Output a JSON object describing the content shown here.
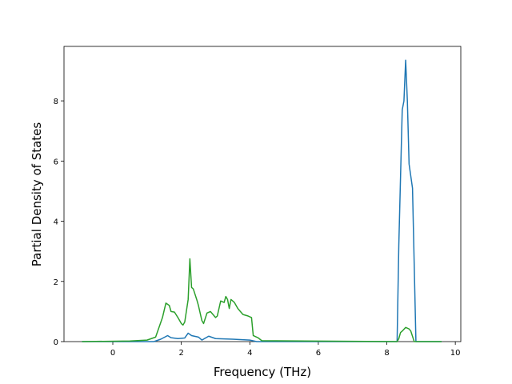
{
  "chart_data": {
    "type": "line",
    "xlabel": "Frequency (THz)",
    "ylabel": "Partial Density of States",
    "xlim": [
      -1.425,
      10.16
    ],
    "ylim": [
      0,
      9.81
    ],
    "xticks": [
      0,
      2,
      4,
      6,
      8,
      10
    ],
    "yticks": [
      0,
      2,
      4,
      6,
      8
    ],
    "grid": false,
    "series": [
      {
        "color": "#1f77b4",
        "x": [
          -0.9,
          1.2,
          1.4,
          1.6,
          1.7,
          1.9,
          2.1,
          2.2,
          2.3,
          2.5,
          2.6,
          2.8,
          3.0,
          3.5,
          4.0,
          4.2,
          8.3,
          8.35,
          8.45,
          8.5,
          8.55,
          8.6,
          8.65,
          8.75,
          8.85,
          9.6
        ],
        "values": [
          0,
          0,
          0.08,
          0.2,
          0.13,
          0.1,
          0.12,
          0.28,
          0.2,
          0.15,
          0.05,
          0.18,
          0.1,
          0.08,
          0.05,
          0,
          0,
          3.2,
          7.7,
          8.0,
          9.35,
          8.0,
          5.9,
          5.1,
          0,
          0
        ]
      },
      {
        "color": "#2ca02c",
        "x": [
          -0.9,
          0.5,
          1.0,
          1.25,
          1.45,
          1.55,
          1.65,
          1.7,
          1.8,
          1.9,
          2.0,
          2.05,
          2.1,
          2.2,
          2.25,
          2.3,
          2.35,
          2.45,
          2.5,
          2.6,
          2.65,
          2.75,
          2.85,
          3.0,
          3.05,
          3.15,
          3.25,
          3.3,
          3.35,
          3.4,
          3.45,
          3.55,
          3.65,
          3.8,
          3.95,
          4.05,
          4.1,
          4.25,
          4.35,
          8.3,
          8.35,
          8.4,
          8.45,
          8.55,
          8.65,
          8.7,
          8.8,
          9.6
        ],
        "values": [
          0,
          0.02,
          0.05,
          0.15,
          0.8,
          1.28,
          1.2,
          1.0,
          0.98,
          0.8,
          0.6,
          0.55,
          0.65,
          1.4,
          2.75,
          1.8,
          1.75,
          1.4,
          1.2,
          0.7,
          0.6,
          0.95,
          1.0,
          0.8,
          0.85,
          1.35,
          1.3,
          1.5,
          1.4,
          1.1,
          1.4,
          1.3,
          1.1,
          0.9,
          0.85,
          0.8,
          0.2,
          0.12,
          0.03,
          0,
          0.1,
          0.3,
          0.35,
          0.47,
          0.42,
          0.35,
          0,
          0
        ]
      }
    ]
  }
}
